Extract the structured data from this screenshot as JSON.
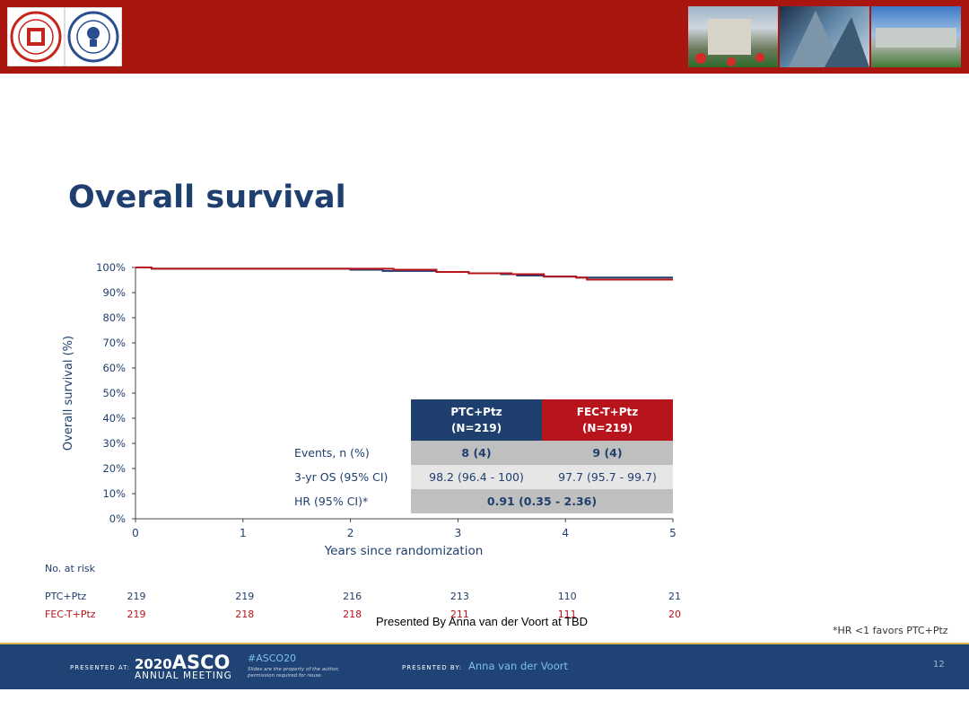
{
  "slide": {
    "title": "Overall survival",
    "presented_overlay": "Presented By Anna van der Voort at TBD",
    "footnote": "*HR <1 favors PTC+Ptz",
    "page_number": "12"
  },
  "footer": {
    "presented_at": "PRESENTED AT:",
    "year": "2020",
    "brand": "ASCO",
    "meeting": "ANNUAL MEETING",
    "hashtag": "#ASCO20",
    "property_note": "Slides are the property of the author, permission required for reuse.",
    "presented_by": "PRESENTED BY:",
    "presenter": "Anna van der Voort"
  },
  "colors": {
    "banner": "#a8160f",
    "navy": "#1f3f6e",
    "red": "#b8141b",
    "footer": "#1e4374"
  },
  "chart_data": {
    "type": "line",
    "title": "Overall survival",
    "xlabel": "Years since randomization",
    "ylabel": "Overall survival (%)",
    "xlim": [
      0,
      5
    ],
    "ylim": [
      0,
      100
    ],
    "x_ticks": [
      "0",
      "1",
      "2",
      "3",
      "4",
      "5"
    ],
    "y_ticks": [
      "0%",
      "10%",
      "20%",
      "30%",
      "40%",
      "50%",
      "60%",
      "70%",
      "80%",
      "90%",
      "100%"
    ],
    "series": [
      {
        "name": "PTC+Ptz",
        "color": "#1f3f6e",
        "x": [
          0,
          0.15,
          1.8,
          2.0,
          2.3,
          2.8,
          3.1,
          3.4,
          3.55,
          3.8,
          4.1,
          4.3,
          5.0
        ],
        "y": [
          100,
          99.5,
          99.5,
          99.1,
          98.6,
          98.2,
          97.7,
          97.3,
          96.8,
          96.4,
          96.0,
          96.0,
          96.0
        ]
      },
      {
        "name": "FEC-T+Ptz",
        "color": "#b8141b",
        "x": [
          0,
          0.15,
          1.8,
          2.1,
          2.4,
          2.8,
          3.1,
          3.5,
          3.8,
          4.1,
          4.2,
          5.0
        ],
        "y": [
          100,
          99.5,
          99.5,
          99.5,
          99.1,
          98.2,
          97.7,
          97.3,
          96.4,
          96.0,
          95.2,
          95.2
        ]
      }
    ],
    "table": {
      "col_headers": [
        {
          "line1": "PTC+Ptz",
          "line2": "(N=219)"
        },
        {
          "line1": "FEC-T+Ptz",
          "line2": "(N=219)"
        }
      ],
      "rows": [
        {
          "label": "Events, n (%)",
          "values": [
            "8 (4)",
            "9 (4)"
          ]
        },
        {
          "label": "3-yr OS (95% CI)",
          "values": [
            "98.2 (96.4 - 100)",
            "97.7 (95.7 - 99.7)"
          ]
        },
        {
          "label": "HR (95% CI)*",
          "merged": "0.91 (0.35 - 2.36)"
        }
      ]
    },
    "risk_table": {
      "title": "No. at risk",
      "rows": [
        {
          "label": "PTC+Ptz",
          "color": "#1f3f6e",
          "values": [
            "219",
            "219",
            "216",
            "213",
            "110",
            "21"
          ]
        },
        {
          "label": "FEC-T+Ptz",
          "color": "#b8141b",
          "values": [
            "219",
            "218",
            "218",
            "211",
            "111",
            "20"
          ]
        }
      ]
    }
  }
}
